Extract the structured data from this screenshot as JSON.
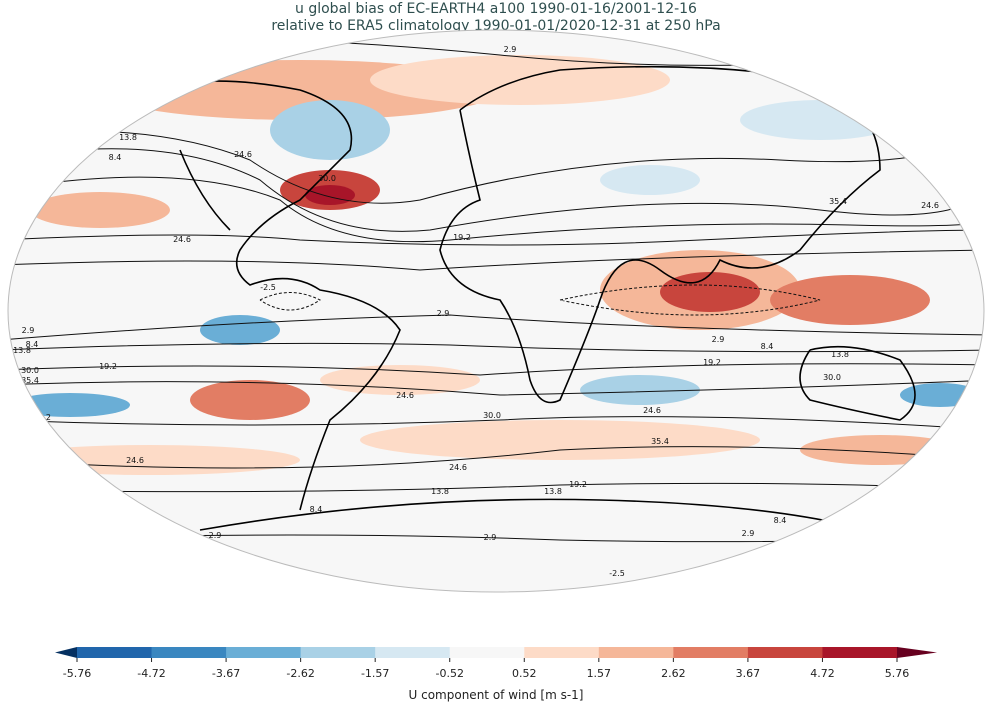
{
  "title_line1": "u global bias of EC-EARTH4 a100 1990-01-16/2001-12-16",
  "title_line2": "relative to ERA5 climatology 1990-01-01/2020-12-31 at 250 hPa",
  "colorbar": {
    "label": "U component of wind [m s-1]",
    "ticks": [
      "-5.76",
      "-4.72",
      "-3.67",
      "-2.62",
      "-1.57",
      "-0.52",
      "0.52",
      "1.57",
      "2.62",
      "3.67",
      "4.72",
      "5.76"
    ],
    "colors": [
      "#053061",
      "#2166ac",
      "#3a87c0",
      "#6aaed6",
      "#a9d1e6",
      "#d6e8f2",
      "#f7f7f7",
      "#fddbc7",
      "#f5b799",
      "#e27d64",
      "#c8453d",
      "#a81529",
      "#67001f"
    ],
    "extend": "both"
  },
  "map": {
    "projection": "Robinson",
    "contour_labels": [
      "2.9",
      "8.4",
      "13.8",
      "19.2",
      "24.6",
      "30.0",
      "35.4",
      "-2.5"
    ]
  }
}
